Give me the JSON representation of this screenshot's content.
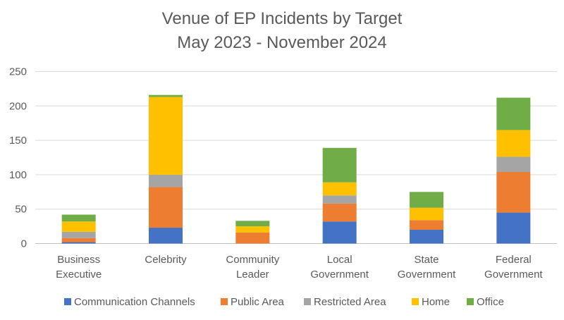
{
  "chart_data": {
    "type": "bar",
    "stacked": true,
    "title": "Venue of EP Incidents by Target",
    "subtitle": "May 2023 - November 2024",
    "categories": [
      [
        "Business",
        "Executive"
      ],
      [
        "Celebrity"
      ],
      [
        "Community",
        "Leader"
      ],
      [
        "Local",
        "Government"
      ],
      [
        "State",
        "Government"
      ],
      [
        "Federal",
        "Government"
      ]
    ],
    "series": [
      {
        "name": "Communication Channels",
        "color": "#4472C4",
        "values": [
          2,
          23,
          0,
          32,
          20,
          45
        ]
      },
      {
        "name": "Public Area",
        "color": "#ED7D31",
        "values": [
          6,
          59,
          16,
          26,
          14,
          59
        ]
      },
      {
        "name": "Restricted Area",
        "color": "#A5A5A5",
        "values": [
          9,
          18,
          0,
          12,
          0,
          22
        ]
      },
      {
        "name": "Home",
        "color": "#FFC000",
        "values": [
          15,
          113,
          9,
          19,
          18,
          39
        ]
      },
      {
        "name": "Office",
        "color": "#70AD47",
        "values": [
          10,
          3,
          8,
          50,
          23,
          47
        ]
      }
    ],
    "ylim": [
      0,
      250
    ],
    "yticks": [
      0,
      50,
      100,
      150,
      200,
      250
    ],
    "grid": true,
    "legend": "bottom"
  }
}
